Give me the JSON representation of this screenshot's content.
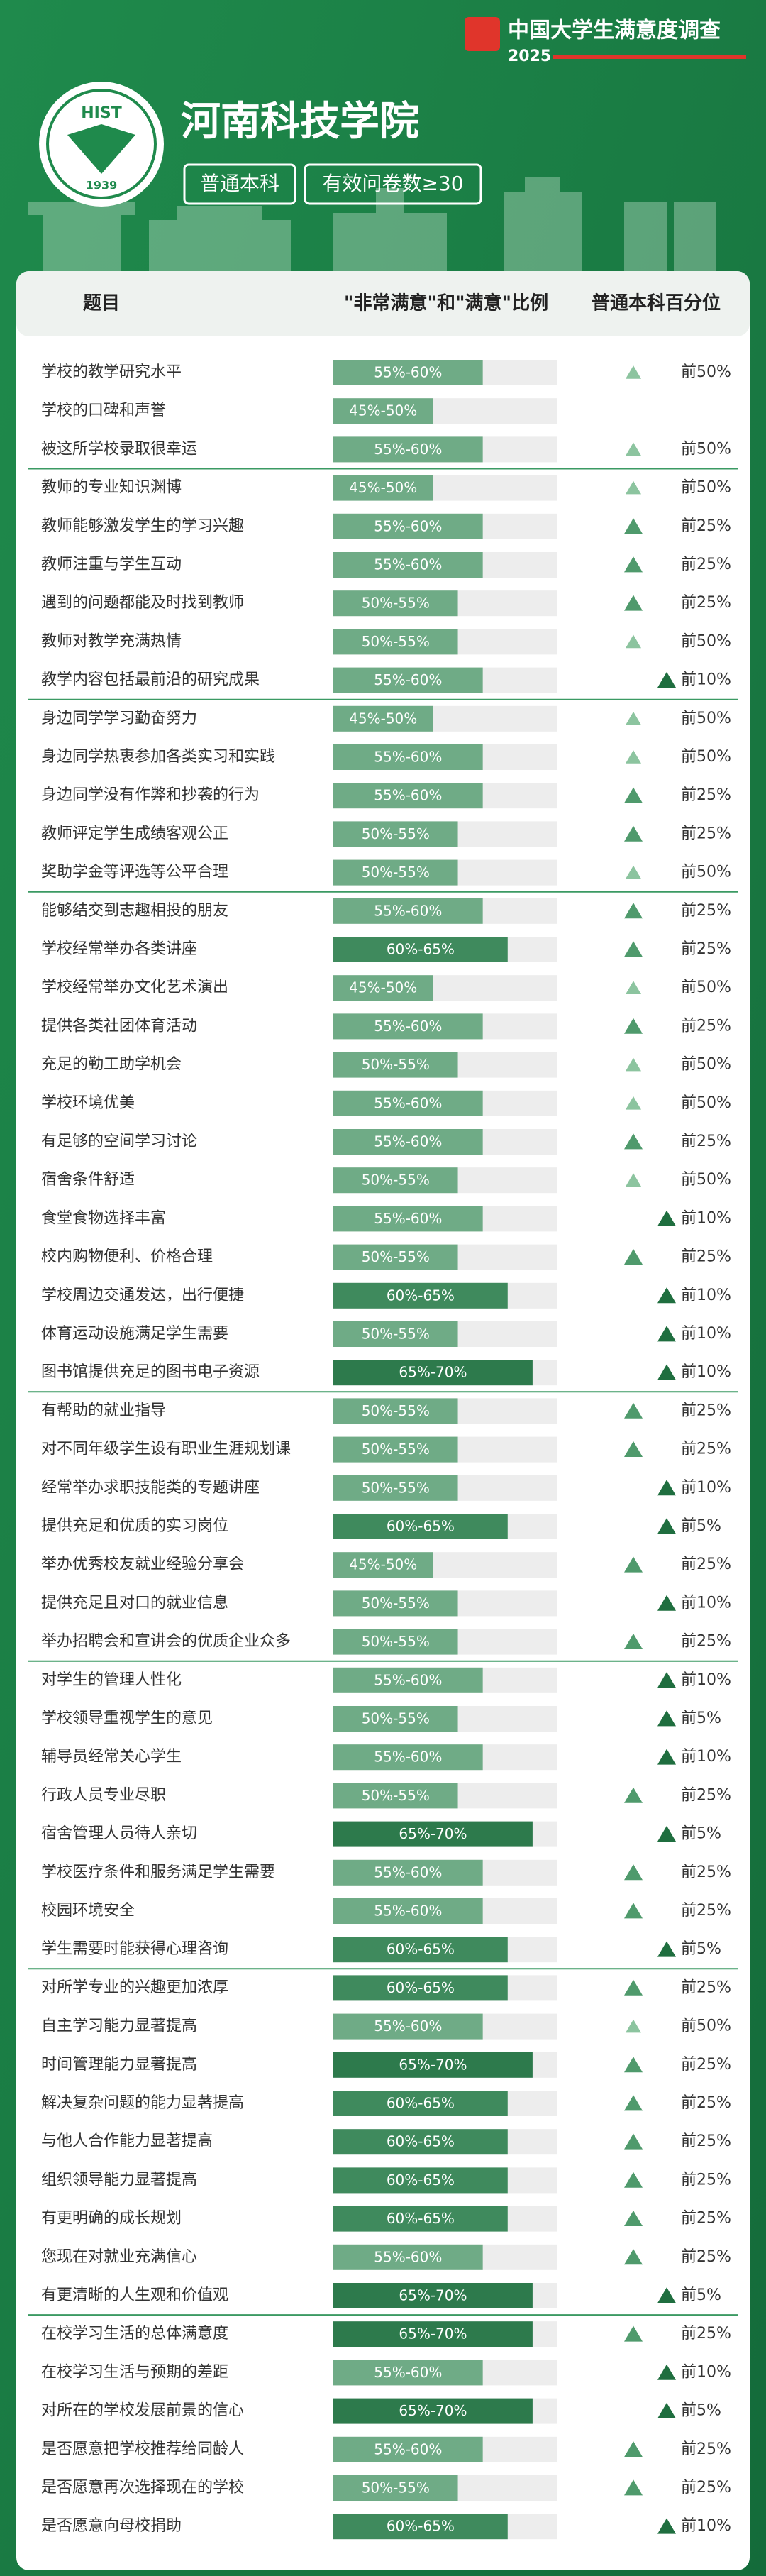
{
  "header": {
    "brand": "中国大学生满意度调查",
    "year": "2025",
    "logo_text": "HIST",
    "logo_year": "1939",
    "school": "河南科技学院",
    "tags": [
      "普通本科",
      "有效问卷数≥30"
    ]
  },
  "table": {
    "columns": [
      "题目",
      "\"非常满意\"和\"满意\"比例",
      "普通本科百分位"
    ],
    "groups": [
      [
        {
          "item": "学校的教学研究水平",
          "range": {
            "label": "55%-60%",
            "low": 55,
            "high": 60
          },
          "rank": "前50%"
        },
        {
          "item": "学校的口碑和声誉",
          "range": {
            "label": "45%-50%",
            "low": 45,
            "high": 50
          },
          "rank": null
        },
        {
          "item": "被这所学校录取很幸运",
          "range": {
            "label": "55%-60%",
            "low": 55,
            "high": 60
          },
          "rank": "前50%"
        }
      ],
      [
        {
          "item": "教师的专业知识渊博",
          "range": {
            "label": "45%-50%",
            "low": 45,
            "high": 50
          },
          "rank": "前50%"
        },
        {
          "item": "教师能够激发学生的学习兴趣",
          "range": {
            "label": "55%-60%",
            "low": 55,
            "high": 60
          },
          "rank": "前25%"
        },
        {
          "item": "教师注重与学生互动",
          "range": {
            "label": "55%-60%",
            "low": 55,
            "high": 60
          },
          "rank": "前25%"
        },
        {
          "item": "遇到的问题都能及时找到教师",
          "range": {
            "label": "50%-55%",
            "low": 50,
            "high": 55
          },
          "rank": "前25%"
        },
        {
          "item": "教师对教学充满热情",
          "range": {
            "label": "50%-55%",
            "low": 50,
            "high": 55
          },
          "rank": "前50%"
        },
        {
          "item": "教学内容包括最前沿的研究成果",
          "range": {
            "label": "55%-60%",
            "low": 55,
            "high": 60
          },
          "rank": "前10%"
        }
      ],
      [
        {
          "item": "身边同学学习勤奋努力",
          "range": {
            "label": "45%-50%",
            "low": 45,
            "high": 50
          },
          "rank": "前50%"
        },
        {
          "item": "身边同学热衷参加各类实习和实践",
          "range": {
            "label": "55%-60%",
            "low": 55,
            "high": 60
          },
          "rank": "前50%"
        },
        {
          "item": "身边同学没有作弊和抄袭的行为",
          "range": {
            "label": "55%-60%",
            "low": 55,
            "high": 60
          },
          "rank": "前25%"
        },
        {
          "item": "教师评定学生成绩客观公正",
          "range": {
            "label": "50%-55%",
            "low": 50,
            "high": 55
          },
          "rank": "前25%"
        },
        {
          "item": "奖助学金等评选等公平合理",
          "range": {
            "label": "50%-55%",
            "low": 50,
            "high": 55
          },
          "rank": "前50%"
        }
      ],
      [
        {
          "item": "能够结交到志趣相投的朋友",
          "range": {
            "label": "55%-60%",
            "low": 55,
            "high": 60
          },
          "rank": "前25%"
        },
        {
          "item": "学校经常举办各类讲座",
          "range": {
            "label": "60%-65%",
            "low": 60,
            "high": 65
          },
          "rank": "前25%"
        },
        {
          "item": "学校经常举办文化艺术演出",
          "range": {
            "label": "45%-50%",
            "low": 45,
            "high": 50
          },
          "rank": "前50%"
        },
        {
          "item": "提供各类社团体育活动",
          "range": {
            "label": "55%-60%",
            "low": 55,
            "high": 60
          },
          "rank": "前25%"
        },
        {
          "item": "充足的勤工助学机会",
          "range": {
            "label": "50%-55%",
            "low": 50,
            "high": 55
          },
          "rank": "前50%"
        },
        {
          "item": "学校环境优美",
          "range": {
            "label": "55%-60%",
            "low": 55,
            "high": 60
          },
          "rank": "前50%"
        },
        {
          "item": "有足够的空间学习讨论",
          "range": {
            "label": "55%-60%",
            "low": 55,
            "high": 60
          },
          "rank": "前25%"
        },
        {
          "item": "宿舍条件舒适",
          "range": {
            "label": "50%-55%",
            "low": 50,
            "high": 55
          },
          "rank": "前50%"
        },
        {
          "item": "食堂食物选择丰富",
          "range": {
            "label": "55%-60%",
            "low": 55,
            "high": 60
          },
          "rank": "前10%"
        },
        {
          "item": "校内购物便利、价格合理",
          "range": {
            "label": "50%-55%",
            "low": 50,
            "high": 55
          },
          "rank": "前25%"
        },
        {
          "item": "学校周边交通发达，出行便捷",
          "range": {
            "label": "60%-65%",
            "low": 60,
            "high": 65
          },
          "rank": "前10%"
        },
        {
          "item": "体育运动设施满足学生需要",
          "range": {
            "label": "50%-55%",
            "low": 50,
            "high": 55
          },
          "rank": "前10%"
        },
        {
          "item": "图书馆提供充足的图书电子资源",
          "range": {
            "label": "65%-70%",
            "low": 65,
            "high": 70
          },
          "rank": "前10%"
        }
      ],
      [
        {
          "item": "有帮助的就业指导",
          "range": {
            "label": "50%-55%",
            "low": 50,
            "high": 55
          },
          "rank": "前25%"
        },
        {
          "item": "对不同年级学生设有职业生涯规划课",
          "range": {
            "label": "50%-55%",
            "low": 50,
            "high": 55
          },
          "rank": "前25%"
        },
        {
          "item": "经常举办求职技能类的专题讲座",
          "range": {
            "label": "50%-55%",
            "low": 50,
            "high": 55
          },
          "rank": "前10%"
        },
        {
          "item": "提供充足和优质的实习岗位",
          "range": {
            "label": "60%-65%",
            "low": 60,
            "high": 65
          },
          "rank": "前5%"
        },
        {
          "item": "举办优秀校友就业经验分享会",
          "range": {
            "label": "45%-50%",
            "low": 45,
            "high": 50
          },
          "rank": "前25%"
        },
        {
          "item": "提供充足且对口的就业信息",
          "range": {
            "label": "50%-55%",
            "low": 50,
            "high": 55
          },
          "rank": "前10%"
        },
        {
          "item": "举办招聘会和宣讲会的优质企业众多",
          "range": {
            "label": "50%-55%",
            "low": 50,
            "high": 55
          },
          "rank": "前25%"
        }
      ],
      [
        {
          "item": "对学生的管理人性化",
          "range": {
            "label": "55%-60%",
            "low": 55,
            "high": 60
          },
          "rank": "前10%"
        },
        {
          "item": "学校领导重视学生的意见",
          "range": {
            "label": "50%-55%",
            "low": 50,
            "high": 55
          },
          "rank": "前5%"
        },
        {
          "item": "辅导员经常关心学生",
          "range": {
            "label": "55%-60%",
            "low": 55,
            "high": 60
          },
          "rank": "前10%"
        },
        {
          "item": "行政人员专业尽职",
          "range": {
            "label": "50%-55%",
            "low": 50,
            "high": 55
          },
          "rank": "前25%"
        },
        {
          "item": "宿舍管理人员待人亲切",
          "range": {
            "label": "65%-70%",
            "low": 65,
            "high": 70
          },
          "rank": "前5%"
        },
        {
          "item": "学校医疗条件和服务满足学生需要",
          "range": {
            "label": "55%-60%",
            "low": 55,
            "high": 60
          },
          "rank": "前25%"
        },
        {
          "item": "校园环境安全",
          "range": {
            "label": "55%-60%",
            "low": 55,
            "high": 60
          },
          "rank": "前25%"
        },
        {
          "item": "学生需要时能获得心理咨询",
          "range": {
            "label": "60%-65%",
            "low": 60,
            "high": 65
          },
          "rank": "前5%"
        }
      ],
      [
        {
          "item": "对所学专业的兴趣更加浓厚",
          "range": {
            "label": "60%-65%",
            "low": 60,
            "high": 65
          },
          "rank": "前25%"
        },
        {
          "item": "自主学习能力显著提高",
          "range": {
            "label": "55%-60%",
            "low": 55,
            "high": 60
          },
          "rank": "前50%"
        },
        {
          "item": "时间管理能力显著提高",
          "range": {
            "label": "65%-70%",
            "low": 65,
            "high": 70
          },
          "rank": "前25%"
        },
        {
          "item": "解决复杂问题的能力显著提高",
          "range": {
            "label": "60%-65%",
            "low": 60,
            "high": 65
          },
          "rank": "前25%"
        },
        {
          "item": "与他人合作能力显著提高",
          "range": {
            "label": "60%-65%",
            "low": 60,
            "high": 65
          },
          "rank": "前25%"
        },
        {
          "item": "组织领导能力显著提高",
          "range": {
            "label": "60%-65%",
            "low": 60,
            "high": 65
          },
          "rank": "前25%"
        },
        {
          "item": "有更明确的成长规划",
          "range": {
            "label": "60%-65%",
            "low": 60,
            "high": 65
          },
          "rank": "前25%"
        },
        {
          "item": "您现在对就业充满信心",
          "range": {
            "label": "55%-60%",
            "low": 55,
            "high": 60
          },
          "rank": "前25%"
        },
        {
          "item": "有更清晰的人生观和价值观",
          "range": {
            "label": "65%-70%",
            "low": 65,
            "high": 70
          },
          "rank": "前5%"
        }
      ],
      [
        {
          "item": "在校学习生活的总体满意度",
          "range": {
            "label": "65%-70%",
            "low": 65,
            "high": 70
          },
          "rank": "前25%"
        },
        {
          "item": "在校学习生活与预期的差距",
          "range": {
            "label": "55%-60%",
            "low": 55,
            "high": 60
          },
          "rank": "前10%"
        },
        {
          "item": "对所在的学校发展前景的信心",
          "range": {
            "label": "65%-70%",
            "low": 65,
            "high": 70
          },
          "rank": "前5%"
        },
        {
          "item": "是否愿意把学校推荐给同龄人",
          "range": {
            "label": "55%-60%",
            "low": 55,
            "high": 60
          },
          "rank": "前25%"
        },
        {
          "item": "是否愿意再次选择现在的学校",
          "range": {
            "label": "50%-55%",
            "low": 50,
            "high": 55
          },
          "rank": "前25%"
        },
        {
          "item": "是否愿意向母校捐助",
          "range": {
            "label": "60%-65%",
            "low": 60,
            "high": 65
          },
          "rank": "前10%"
        }
      ]
    ]
  }
}
